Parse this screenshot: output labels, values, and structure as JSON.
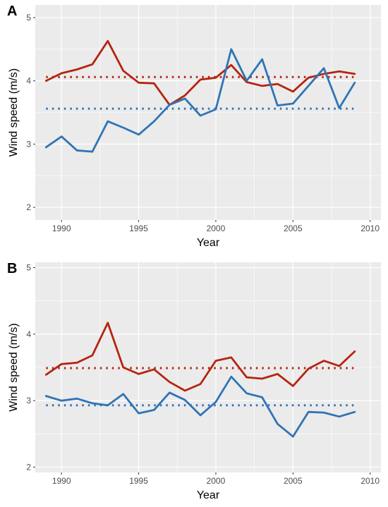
{
  "chart_data": [
    {
      "panel": "A",
      "type": "line",
      "xlabel": "Year",
      "ylabel": "Wind speed (m/s)",
      "xlim": [
        1988.3,
        2010.7
      ],
      "ylim": [
        1.8,
        5.2
      ],
      "xticks": [
        1990,
        1995,
        2000,
        2005,
        2010
      ],
      "yticks": [
        2,
        3,
        4,
        5
      ],
      "grid": true,
      "x": [
        1989,
        1990,
        1991,
        1992,
        1993,
        1994,
        1995,
        1996,
        1997,
        1998,
        1999,
        2000,
        2001,
        2002,
        2003,
        2004,
        2005,
        2006,
        2007,
        2008,
        2009
      ],
      "series": [
        {
          "color": "#b5240f",
          "values": [
            4.0,
            4.12,
            4.18,
            4.26,
            4.63,
            4.16,
            3.97,
            3.96,
            3.62,
            3.77,
            4.02,
            4.05,
            4.25,
            3.98,
            3.92,
            3.95,
            3.83,
            4.05,
            4.11,
            4.15,
            4.11
          ],
          "mean": 4.06
        },
        {
          "color": "#2f74b5",
          "values": [
            2.95,
            3.12,
            2.9,
            2.88,
            3.36,
            3.26,
            3.15,
            3.36,
            3.62,
            3.72,
            3.45,
            3.55,
            4.5,
            4.0,
            4.34,
            3.61,
            3.64,
            3.92,
            4.2,
            3.57,
            3.97
          ],
          "mean": 3.56
        }
      ]
    },
    {
      "panel": "B",
      "type": "line",
      "xlabel": "Year",
      "ylabel": "Wind speed (m/s)",
      "xlim": [
        1988.3,
        2010.7
      ],
      "ylim": [
        1.92,
        5.08
      ],
      "xticks": [
        1990,
        1995,
        2000,
        2005,
        2010
      ],
      "yticks": [
        2,
        3,
        4,
        5
      ],
      "grid": true,
      "x": [
        1989,
        1990,
        1991,
        1992,
        1993,
        1994,
        1995,
        1996,
        1997,
        1998,
        1999,
        2000,
        2001,
        2002,
        2003,
        2004,
        2005,
        2006,
        2007,
        2008,
        2009
      ],
      "series": [
        {
          "color": "#b5240f",
          "values": [
            3.39,
            3.55,
            3.57,
            3.68,
            4.17,
            3.5,
            3.4,
            3.47,
            3.28,
            3.15,
            3.25,
            3.6,
            3.65,
            3.35,
            3.33,
            3.4,
            3.22,
            3.48,
            3.6,
            3.52,
            3.74
          ],
          "mean": 3.49
        },
        {
          "color": "#2f74b5",
          "values": [
            3.07,
            3.0,
            3.03,
            2.96,
            2.93,
            3.1,
            2.81,
            2.86,
            3.12,
            3.01,
            2.78,
            2.98,
            3.36,
            3.11,
            3.05,
            2.65,
            2.46,
            2.83,
            2.82,
            2.76,
            2.83
          ],
          "mean": 2.93
        }
      ]
    }
  ]
}
